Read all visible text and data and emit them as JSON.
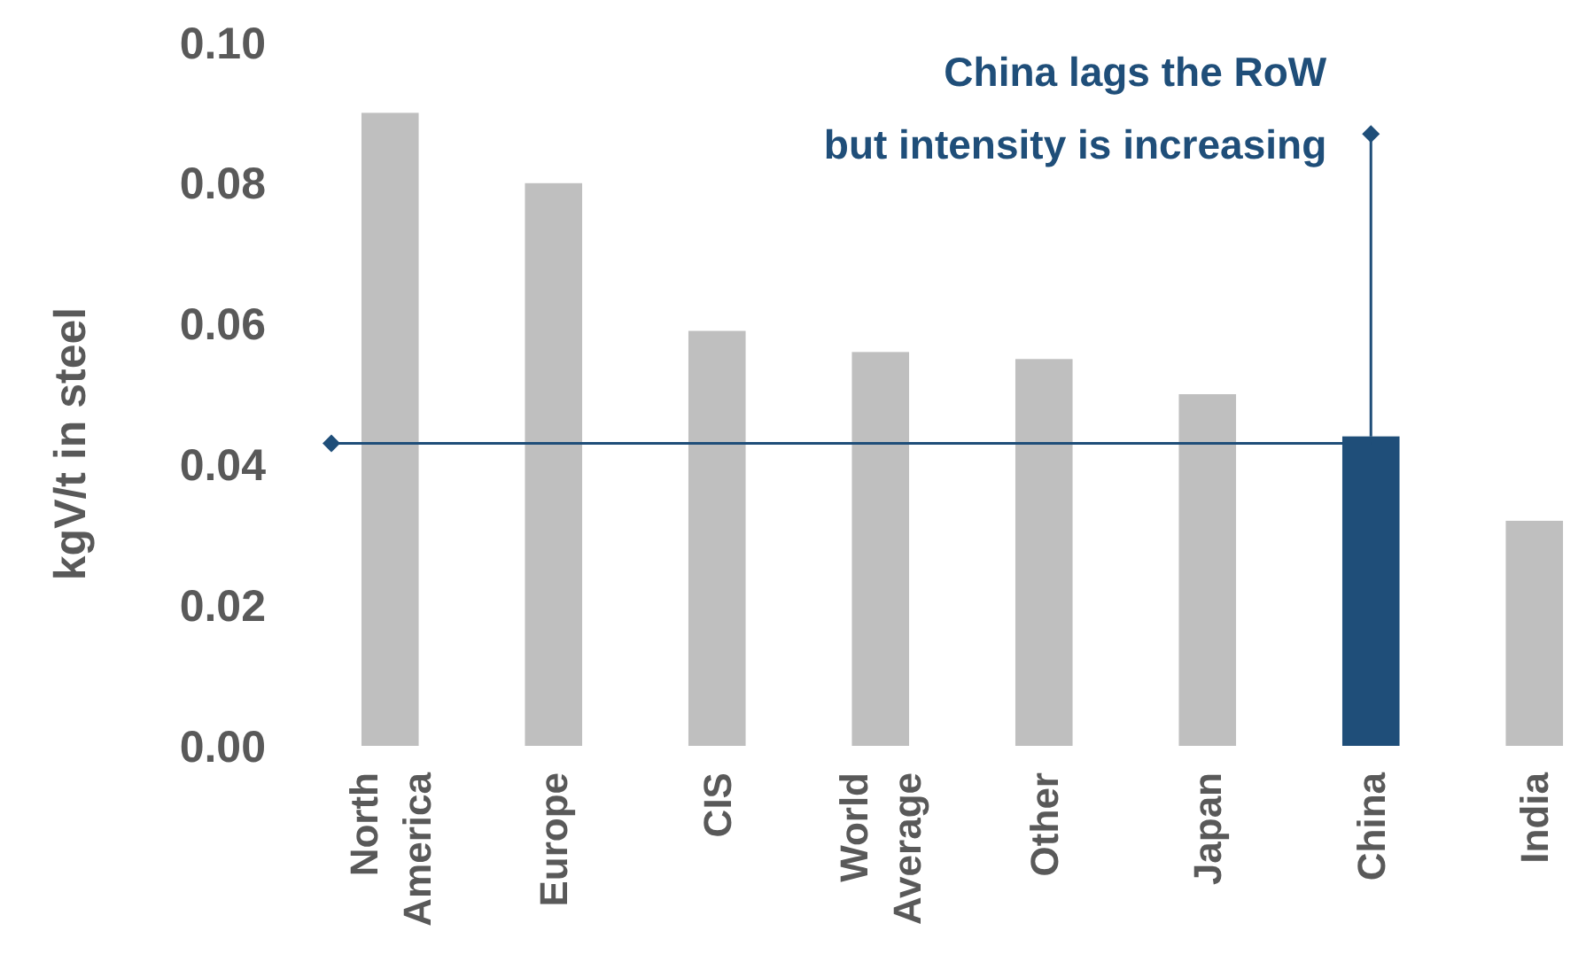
{
  "chart_data": {
    "type": "bar",
    "ylabel": "kgV/t in steel",
    "categories": [
      "North America",
      "Europe",
      "CIS",
      "World Average",
      "Other",
      "Japan",
      "China",
      "India"
    ],
    "values": [
      0.09,
      0.08,
      0.059,
      0.056,
      0.055,
      0.05,
      0.044,
      0.032
    ],
    "colors": [
      "#bfbfbf",
      "#bfbfbf",
      "#bfbfbf",
      "#bfbfbf",
      "#bfbfbf",
      "#bfbfbf",
      "#1f4e79",
      "#bfbfbf"
    ],
    "ylim": [
      0,
      0.1
    ],
    "yticks": [
      {
        "value": 0,
        "label": "0.00"
      },
      {
        "value": 0.02,
        "label": "0.02"
      },
      {
        "value": 0.04,
        "label": "0.04"
      },
      {
        "value": 0.06,
        "label": "0.06"
      },
      {
        "value": 0.08,
        "label": "0.08"
      },
      {
        "value": 0.1,
        "label": "0.10"
      }
    ],
    "grid": false,
    "ref_lines": [
      {
        "axis": "y",
        "value": 0.043,
        "color": "#1f4e79"
      }
    ],
    "annotations": [
      {
        "text": "China lags the RoW\nbut intensity is increasing",
        "x": "China",
        "y": 0.087
      }
    ]
  }
}
